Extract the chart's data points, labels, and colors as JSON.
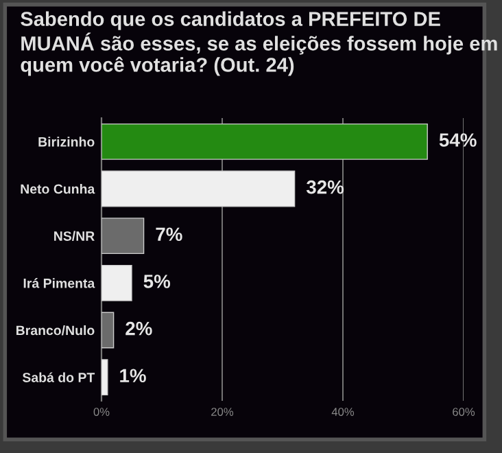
{
  "chart_data": {
    "type": "bar",
    "orientation": "horizontal",
    "title": "Sabendo que os candidatos a PREFEITO DE MUANÁ são esses, se as eleições fossem hoje em quem você votaria? (Out. 24)",
    "categories": [
      "Birizinho",
      "Neto Cunha",
      "NS/NR",
      "Irá Pimenta",
      "Branco/Nulo",
      "Sabá do PT"
    ],
    "values": [
      54,
      32,
      7,
      5,
      2,
      1
    ],
    "value_labels": [
      "54%",
      "32%",
      "7%",
      "5%",
      "2%",
      "1%"
    ],
    "colors": [
      "#248a12",
      "#efefef",
      "#6b6b6b",
      "#efefef",
      "#6b6b6b",
      "#efefef"
    ],
    "xlim": [
      0,
      60
    ],
    "xticks": [
      {
        "value": 0,
        "label": "0%"
      },
      {
        "value": 20,
        "label": "20%"
      },
      {
        "value": 40,
        "label": "40%"
      },
      {
        "value": 60,
        "label": "60%"
      }
    ],
    "grid": "x",
    "legend": false
  }
}
